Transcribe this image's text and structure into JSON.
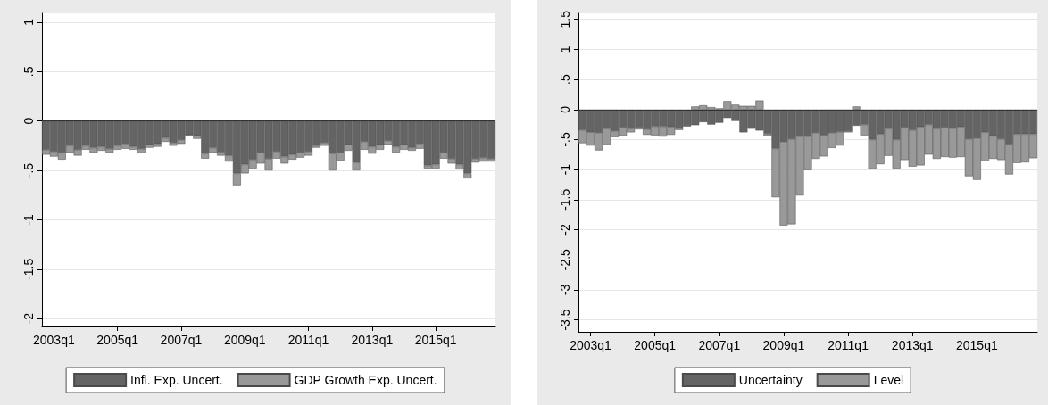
{
  "chart_data": [
    {
      "type": "bar",
      "stacked": true,
      "categories": [
        null,
        "2003q1",
        null,
        null,
        null,
        null,
        null,
        null,
        null,
        "2005q1",
        null,
        null,
        null,
        null,
        null,
        null,
        null,
        "2007q1",
        null,
        null,
        null,
        null,
        null,
        null,
        null,
        "2009q1",
        null,
        null,
        null,
        null,
        null,
        null,
        null,
        "2011q1",
        null,
        null,
        null,
        null,
        null,
        null,
        null,
        "2013q1",
        null,
        null,
        null,
        null,
        null,
        null,
        null,
        "2015q1",
        null,
        null,
        null,
        null,
        null,
        null,
        null
      ],
      "series": [
        {
          "name": "Infl. Exp. Uncert.",
          "color": "#646464",
          "values": [
            -0.29,
            -0.31,
            -0.32,
            -0.25,
            -0.29,
            -0.25,
            -0.27,
            -0.26,
            -0.28,
            -0.25,
            -0.23,
            -0.26,
            -0.28,
            -0.24,
            -0.23,
            -0.17,
            -0.22,
            -0.19,
            -0.14,
            -0.15,
            -0.33,
            -0.27,
            -0.32,
            -0.35,
            -0.53,
            -0.44,
            -0.39,
            -0.32,
            -0.38,
            -0.31,
            -0.36,
            -0.34,
            -0.32,
            -0.31,
            -0.25,
            -0.22,
            -0.33,
            -0.32,
            -0.24,
            -0.42,
            -0.21,
            -0.26,
            -0.24,
            -0.2,
            -0.26,
            -0.24,
            -0.27,
            -0.23,
            -0.45,
            -0.44,
            -0.32,
            -0.38,
            -0.44,
            -0.53,
            -0.38,
            -0.37,
            -0.38
          ]
        },
        {
          "name": "GDP Growth Exp. Uncert.",
          "color": "#999999",
          "values": [
            -0.05,
            -0.05,
            -0.07,
            -0.07,
            -0.06,
            -0.04,
            -0.05,
            -0.04,
            -0.04,
            -0.04,
            -0.05,
            -0.03,
            -0.04,
            -0.03,
            -0.03,
            -0.04,
            -0.03,
            -0.04,
            -0.01,
            -0.03,
            -0.05,
            -0.05,
            -0.03,
            -0.06,
            -0.12,
            -0.09,
            -0.09,
            -0.11,
            -0.12,
            -0.07,
            -0.07,
            -0.05,
            -0.05,
            -0.04,
            -0.02,
            -0.03,
            -0.17,
            -0.08,
            -0.06,
            -0.08,
            -0.08,
            -0.07,
            -0.05,
            -0.04,
            -0.06,
            -0.05,
            -0.03,
            -0.05,
            -0.03,
            -0.04,
            -0.06,
            -0.05,
            -0.05,
            -0.05,
            -0.04,
            -0.04,
            -0.03
          ]
        }
      ],
      "ylim": [
        -2.08,
        1.09
      ],
      "yticks": [
        -2,
        {
          "value": -1.5,
          "label": "-1.5"
        },
        -1,
        {
          "value": -0.5,
          "label": "-.5"
        },
        0,
        {
          "value": 0.5,
          "label": ".5"
        },
        1
      ],
      "grid": "y",
      "legend": "bottom",
      "ref_lines": [
        {
          "axis": "y",
          "value": 0,
          "color": "#333333"
        }
      ]
    },
    {
      "type": "bar",
      "stacked": true,
      "categories": [
        null,
        "2003q1",
        null,
        null,
        null,
        null,
        null,
        null,
        null,
        "2005q1",
        null,
        null,
        null,
        null,
        null,
        null,
        null,
        "2007q1",
        null,
        null,
        null,
        null,
        null,
        null,
        null,
        "2009q1",
        null,
        null,
        null,
        null,
        null,
        null,
        null,
        "2011q1",
        null,
        null,
        null,
        null,
        null,
        null,
        null,
        "2013q1",
        null,
        null,
        null,
        null,
        null,
        null,
        null,
        "2015q1",
        null,
        null,
        null,
        null,
        null,
        null,
        null
      ],
      "series": [
        {
          "name": "Uncertainty",
          "color": "#646464",
          "values": [
            -0.34,
            -0.38,
            -0.39,
            -0.32,
            -0.36,
            -0.3,
            -0.32,
            -0.3,
            -0.33,
            -0.28,
            -0.28,
            -0.29,
            -0.31,
            -0.27,
            -0.26,
            -0.21,
            -0.25,
            -0.22,
            -0.14,
            -0.19,
            -0.38,
            -0.32,
            -0.35,
            -0.4,
            -0.65,
            -0.54,
            -0.49,
            -0.45,
            -0.45,
            -0.39,
            -0.43,
            -0.39,
            -0.37,
            -0.36,
            -0.27,
            -0.25,
            -0.5,
            -0.41,
            -0.32,
            -0.5,
            -0.3,
            -0.34,
            -0.29,
            -0.25,
            -0.32,
            -0.3,
            -0.31,
            -0.29,
            -0.49,
            -0.48,
            -0.38,
            -0.44,
            -0.49,
            -0.58,
            -0.41,
            -0.41,
            -0.41
          ]
        },
        {
          "name": "Level",
          "color": "#999999",
          "values": [
            -0.22,
            -0.22,
            -0.29,
            -0.27,
            -0.1,
            -0.14,
            -0.06,
            -0.03,
            -0.09,
            -0.15,
            -0.17,
            -0.13,
            -0.03,
            -0.01,
            0.05,
            0.07,
            0.04,
            0.02,
            0.14,
            0.08,
            0.06,
            0.06,
            0.15,
            -0.04,
            -0.81,
            -1.39,
            -1.42,
            -0.98,
            -0.56,
            -0.43,
            -0.35,
            -0.25,
            -0.23,
            -0.02,
            0.05,
            -0.18,
            -0.49,
            -0.5,
            -0.45,
            -0.48,
            -0.54,
            -0.61,
            -0.64,
            -0.5,
            -0.5,
            -0.49,
            -0.49,
            -0.5,
            -0.62,
            -0.69,
            -0.48,
            -0.38,
            -0.35,
            -0.5,
            -0.48,
            -0.47,
            -0.4
          ]
        }
      ],
      "ylim": [
        -3.7,
        1.6
      ],
      "yticks": [
        {
          "value": -3.5,
          "label": "-3.5"
        },
        -3,
        {
          "value": -2.5,
          "label": "-2.5"
        },
        -2,
        {
          "value": -1.5,
          "label": "-1.5"
        },
        -1,
        {
          "value": -0.5,
          "label": "-.5"
        },
        0,
        {
          "value": 0.5,
          "label": ".5"
        },
        1,
        {
          "value": 1.5,
          "label": "1.5"
        }
      ],
      "grid": "y",
      "legend": "bottom",
      "ref_lines": [
        {
          "axis": "y",
          "value": 0,
          "color": "#333333"
        }
      ]
    }
  ]
}
